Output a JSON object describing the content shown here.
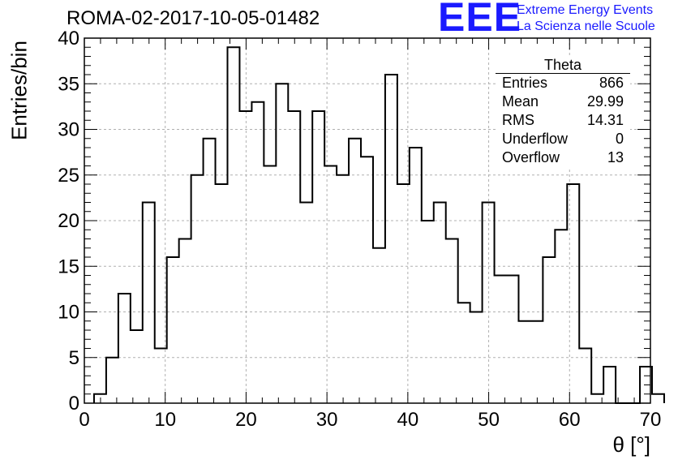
{
  "chart_data": {
    "type": "histogram",
    "title": "ROMA-02-2017-10-05-01482",
    "xlabel": "θ [°]",
    "ylabel": "Entries/bin",
    "xlim": [
      0,
      70
    ],
    "ylim": [
      0,
      40
    ],
    "xticks": [
      0,
      10,
      20,
      30,
      40,
      50,
      60,
      70
    ],
    "yticks": [
      0,
      5,
      10,
      15,
      20,
      25,
      30,
      35,
      40
    ],
    "grid": true,
    "bin_width": 1.5,
    "bins_start": 1.2,
    "counts": [
      1,
      5,
      12,
      8,
      22,
      6,
      16,
      18,
      25,
      29,
      24,
      39,
      32,
      33,
      26,
      35,
      32,
      22,
      32,
      26,
      25,
      29,
      27,
      17,
      36,
      24,
      28,
      20,
      22,
      18,
      11,
      10,
      22,
      14,
      14,
      9,
      9,
      16,
      19,
      24,
      6,
      1,
      4,
      0,
      0,
      4,
      1
    ],
    "stats": {
      "title": "Theta",
      "rows": [
        {
          "label": "Entries",
          "value": "866"
        },
        {
          "label": "Mean",
          "value": "29.99"
        },
        {
          "label": "RMS",
          "value": "14.31"
        },
        {
          "label": "Underflow",
          "value": "0"
        },
        {
          "label": "Overflow",
          "value": "13"
        }
      ]
    }
  },
  "logo": {
    "mark": "EEE",
    "line1": "Extreme Energy Events",
    "line2": "La Scienza nelle Scuole",
    "color": "#1a1aff"
  }
}
